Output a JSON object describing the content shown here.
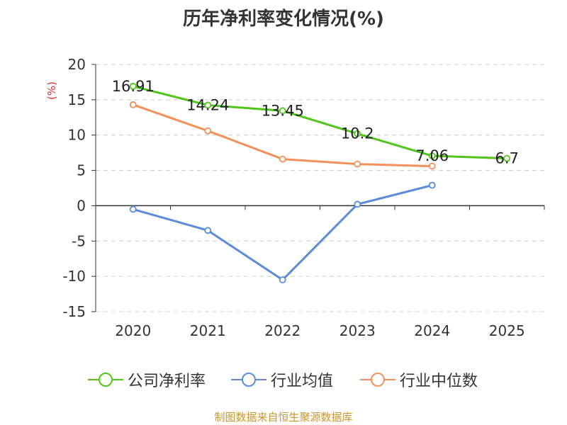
{
  "chart_data": {
    "type": "line",
    "title": "历年净利率变化情况(%)",
    "ylabel": "(%)",
    "xlabel": "",
    "categories": [
      "2020",
      "2021",
      "2022",
      "2023",
      "2024",
      "2025"
    ],
    "ylim": [
      -15,
      20
    ],
    "yticks": [
      20,
      15,
      10,
      5,
      0,
      -5,
      -10,
      -15
    ],
    "grid": true,
    "legend_position": "bottom",
    "series": [
      {
        "name": "公司净利率",
        "color": "#52c41a",
        "values": [
          16.91,
          14.24,
          13.45,
          10.2,
          7.06,
          6.7
        ],
        "labels": [
          "16.91",
          "14.24",
          "13.45",
          "10.2",
          "7.06",
          "6.7"
        ]
      },
      {
        "name": "行业均值",
        "color": "#5b8bd9",
        "values": [
          -0.5,
          -3.5,
          -10.5,
          0.2,
          2.9,
          null
        ]
      },
      {
        "name": "行业中位数",
        "color": "#f5905a",
        "values": [
          14.3,
          10.6,
          6.6,
          5.9,
          5.6,
          null
        ]
      }
    ]
  },
  "source": "制图数据来自恒生聚源数据库"
}
